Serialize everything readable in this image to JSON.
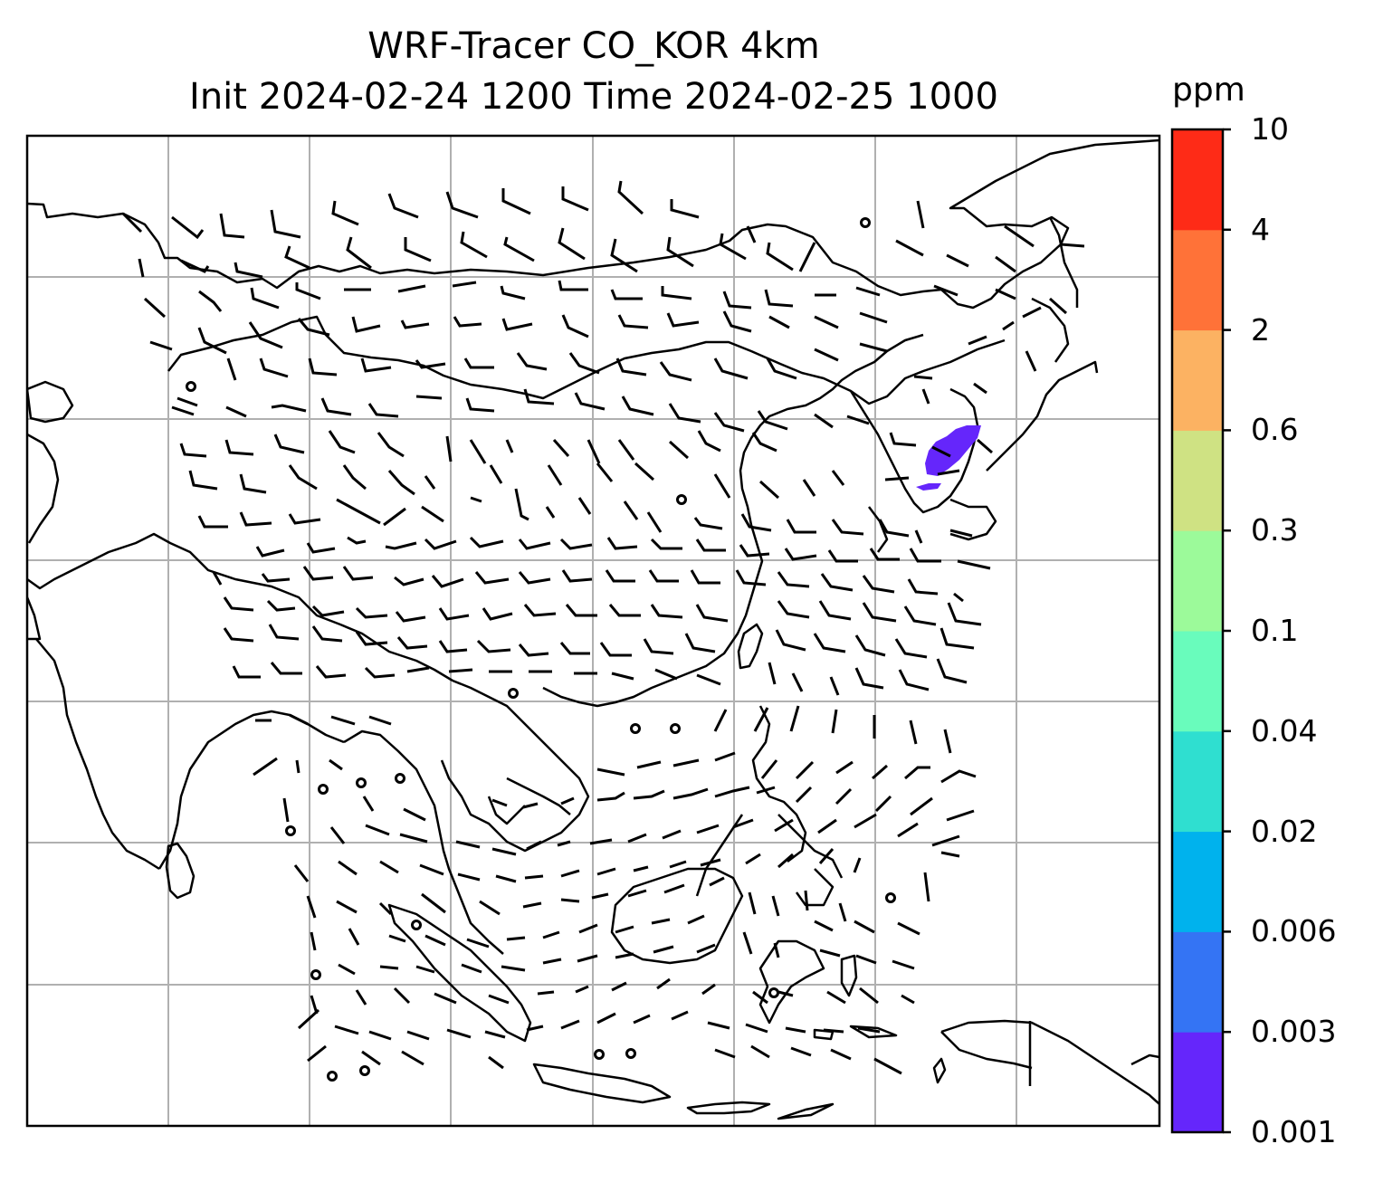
{
  "title": {
    "line1": "WRF-Tracer CO_KOR 4km",
    "line2": "Init 2024-02-24 1200 Time 2024-02-25 1000"
  },
  "colorbar": {
    "unit": "ppm",
    "levels": [
      "0.001",
      "0.003",
      "0.006",
      "0.02",
      "0.04",
      "0.1",
      "0.3",
      "0.6",
      "2",
      "4",
      "10"
    ],
    "colors": [
      "#6526fb",
      "#3474f4",
      "#00b2ed",
      "#2fdfd0",
      "#69fcbc",
      "#9cfa9a",
      "#cfe283",
      "#fcb262",
      "#ff7238",
      "#fe2b17"
    ]
  },
  "map": {
    "gridlines": true,
    "plume_color": "#6526fb",
    "features": [
      "coastlines",
      "wind-barbs",
      "lat-lon-grid",
      "co-tracer-plume"
    ]
  }
}
